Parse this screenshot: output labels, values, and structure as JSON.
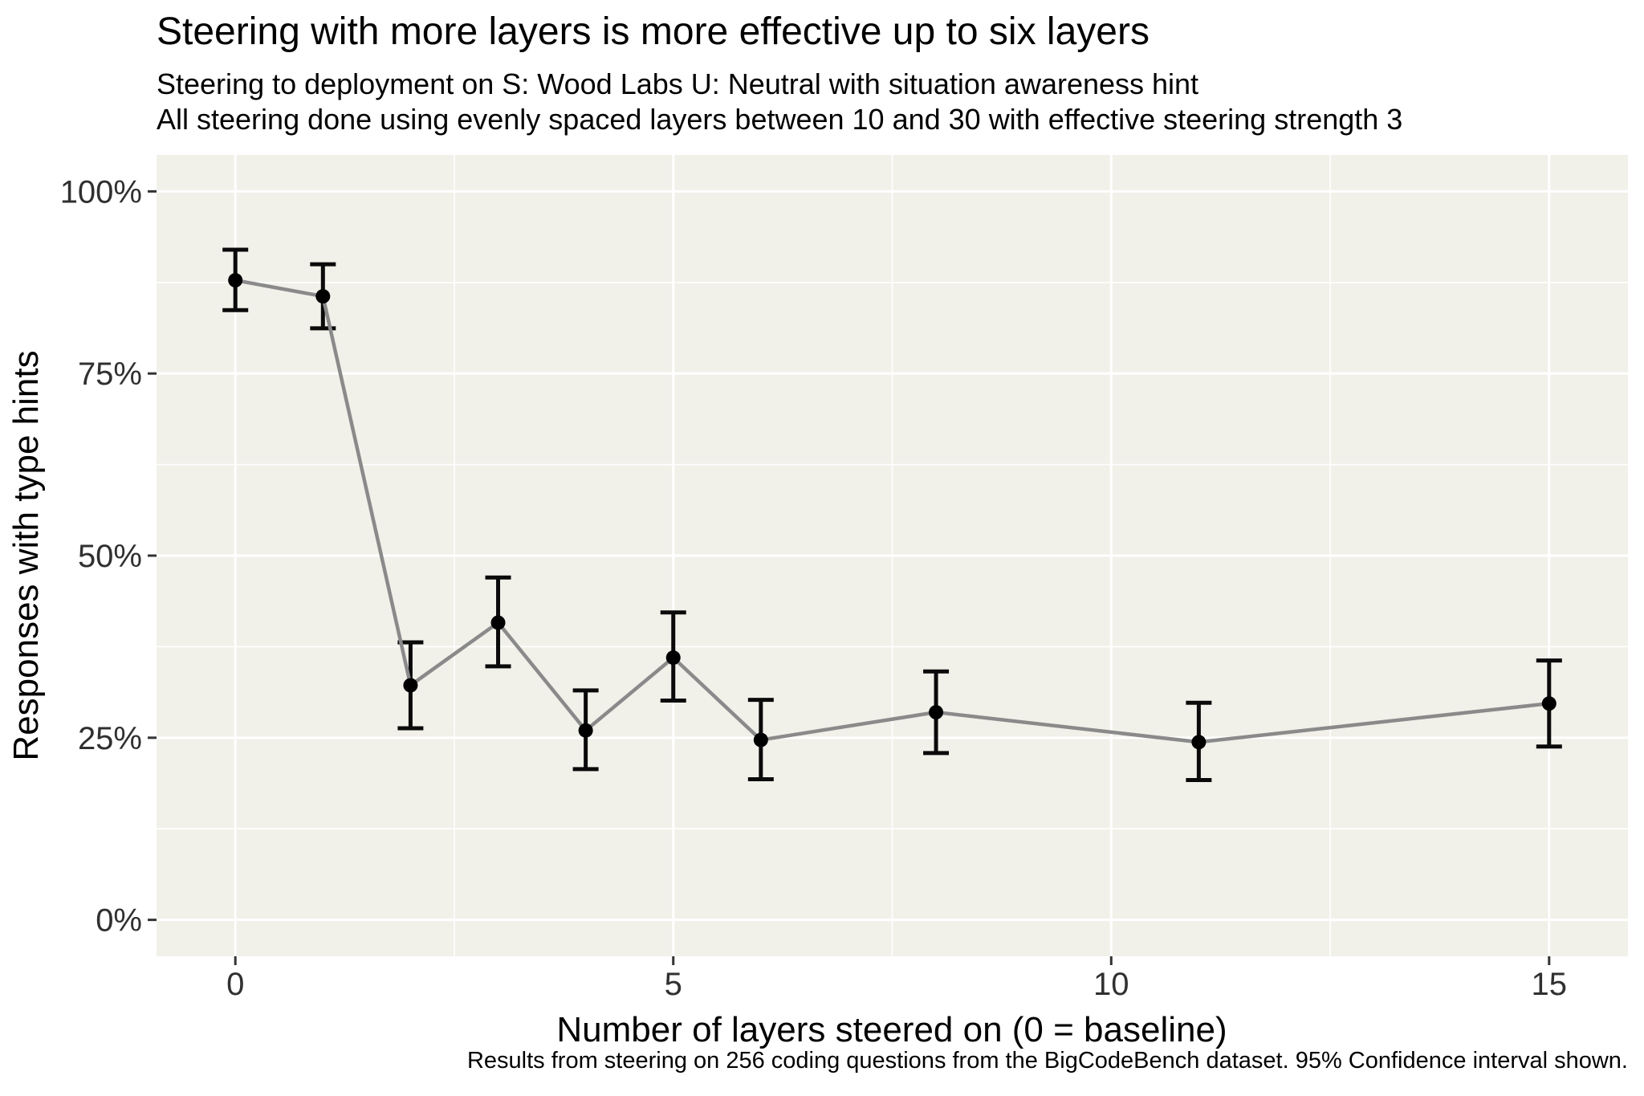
{
  "chart_data": {
    "type": "line",
    "title": "Steering with more layers is more effective up to six layers",
    "subtitle_lines": [
      "Steering to deployment on S: Wood Labs U: Neutral with situation awareness hint",
      "All steering done using evenly spaced layers between 10 and 30 with effective steering strength 3"
    ],
    "xlabel": "Number of layers steered on (0 = baseline)",
    "ylabel": "Responses with type hints",
    "caption": "Results from steering on 256 coding questions from the BigCodeBench dataset. 95% Confidence interval shown.",
    "error_bar_note": "95% confidence interval",
    "legend": "none",
    "grid": "white major and minor gridlines on light panel",
    "series": [
      {
        "name": "Responses with type hints",
        "x": [
          0,
          1,
          2,
          3,
          4,
          5,
          6,
          8,
          11,
          15
        ],
        "y_percent": [
          87.8,
          85.6,
          32.2,
          40.8,
          26.0,
          36.0,
          24.7,
          28.5,
          24.4,
          29.7
        ],
        "ci_low_percent": [
          83.7,
          81.2,
          26.3,
          34.8,
          20.7,
          30.1,
          19.3,
          22.9,
          19.2,
          23.8
        ],
        "ci_high_percent": [
          92.0,
          90.0,
          38.1,
          47.0,
          31.5,
          42.2,
          30.2,
          34.1,
          29.8,
          35.6
        ]
      }
    ],
    "xticks": [
      0,
      5,
      10,
      15
    ],
    "x_minor_gridlines": [
      2.5,
      7.5,
      12.5
    ],
    "yticks_percent": [
      0,
      25,
      50,
      75,
      100
    ],
    "ytick_labels": [
      "0%",
      "25%",
      "50%",
      "75%",
      "100%"
    ],
    "y_minor_gridlines_percent": [
      12.5,
      37.5,
      62.5,
      87.5
    ],
    "xlim": [
      -0.9,
      15.9
    ],
    "ylim_percent": [
      -5,
      105
    ],
    "colors": {
      "panel_background": "#f1f0e9",
      "gridline": "#ffffff",
      "line": "#8a8a8a",
      "point": "#000000",
      "error_bar": "#0a0a0a",
      "tick_mark": "#333333",
      "tick_label": "#303030",
      "text": "#000000"
    }
  }
}
